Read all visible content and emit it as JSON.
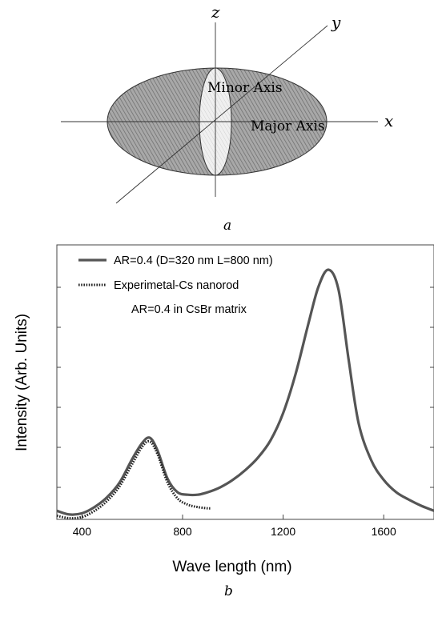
{
  "diagram": {
    "axis_letters": {
      "x": "x",
      "y": "y",
      "z": "z"
    },
    "minor_axis_label": "Minor Axis",
    "major_axis_label": "Major Axis",
    "panel_a_label": "a",
    "panel_b_label": "b",
    "fill_color": "#9a9a9a",
    "minor_fill_color": "#e6e6e6"
  },
  "chart_data": {
    "type": "line",
    "title": "",
    "xlabel": "Wave length (nm)",
    "ylabel": "Intensity (Arb. Units)",
    "xlim": [
      300,
      1800
    ],
    "ylim": [
      0,
      1
    ],
    "x_ticks": [
      400,
      800,
      1200,
      1600
    ],
    "y_ticks_labeled": false,
    "grid": false,
    "legend_position": "top-left",
    "legend_extra_text": "AR=0.4 in CsBr matrix",
    "series": [
      {
        "name": "AR=0.4 (D=320 nm L=800 nm)",
        "style": "solid",
        "color": "#555555",
        "x": [
          300,
          350,
          400,
          450,
          500,
          550,
          600,
          640,
          670,
          700,
          740,
          780,
          820,
          860,
          900,
          950,
          1000,
          1050,
          1100,
          1150,
          1200,
          1250,
          1300,
          1340,
          1380,
          1420,
          1460,
          1500,
          1550,
          1600,
          1650,
          1700,
          1750,
          1800
        ],
        "y": [
          0.025,
          0.01,
          0.015,
          0.04,
          0.08,
          0.14,
          0.235,
          0.3,
          0.32,
          0.27,
          0.155,
          0.1,
          0.09,
          0.09,
          0.1,
          0.12,
          0.15,
          0.19,
          0.24,
          0.31,
          0.42,
          0.58,
          0.78,
          0.93,
          1.0,
          0.92,
          0.64,
          0.38,
          0.23,
          0.15,
          0.1,
          0.07,
          0.045,
          0.025
        ]
      },
      {
        "name": "Experimetal-Cs nanorod",
        "style": "dotted",
        "color": "#222222",
        "x": [
          300,
          350,
          400,
          450,
          500,
          550,
          600,
          640,
          670,
          700,
          740,
          780,
          820,
          860,
          900,
          910
        ],
        "y": [
          0.005,
          -0.005,
          0.0,
          0.025,
          0.065,
          0.125,
          0.215,
          0.285,
          0.305,
          0.255,
          0.14,
          0.075,
          0.05,
          0.04,
          0.035,
          0.035
        ]
      }
    ]
  }
}
